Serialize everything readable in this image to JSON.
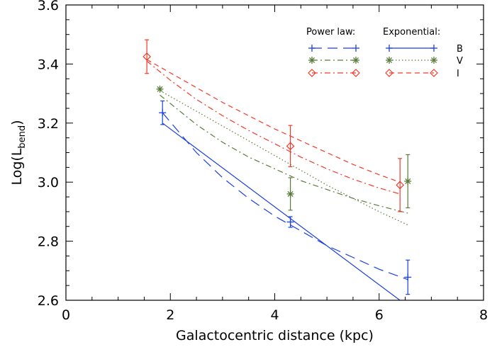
{
  "chart_data": {
    "type": "line",
    "title": "",
    "xlabel": "Galactocentric distance (kpc)",
    "ylabel_main": "Log(L",
    "ylabel_sub": "bend",
    "ylabel_close": ")",
    "xlim": [
      0,
      8
    ],
    "ylim": [
      2.6,
      3.6
    ],
    "x_ticks": [
      0,
      2,
      4,
      6,
      8
    ],
    "x_tick_labels": [
      "0",
      "2",
      "4",
      "6",
      "8"
    ],
    "y_ticks": [
      2.6,
      2.8,
      3.0,
      3.2,
      3.4,
      3.6
    ],
    "y_tick_labels": [
      "2.6",
      "2.8",
      "3.0",
      "3.2",
      "3.4",
      "3.6"
    ],
    "grid": false,
    "legend": {
      "placement": "top-right",
      "col_headers": [
        "Power law:",
        "Exponential:"
      ],
      "band_labels": [
        "B",
        "V",
        "I"
      ]
    },
    "colors": {
      "B": "#1a3fe0",
      "V": "#5a7a3a",
      "I": "#f03a2a"
    },
    "observations": [
      {
        "band": "B",
        "marker": "plus",
        "points": [
          {
            "x": 1.85,
            "y": 3.235,
            "err": 0.04
          },
          {
            "x": 4.3,
            "y": 2.865,
            "err": 0.018
          },
          {
            "x": 6.55,
            "y": 2.678,
            "err": 0.058
          }
        ]
      },
      {
        "band": "V",
        "marker": "asterisk",
        "points": [
          {
            "x": 1.8,
            "y": 3.315,
            "err": 0.0
          },
          {
            "x": 4.3,
            "y": 2.96,
            "err": 0.055
          },
          {
            "x": 6.55,
            "y": 3.003,
            "err": 0.09
          }
        ]
      },
      {
        "band": "I",
        "marker": "diamond",
        "points": [
          {
            "x": 1.55,
            "y": 3.425,
            "err": 0.057
          },
          {
            "x": 4.3,
            "y": 3.122,
            "err": 0.07
          },
          {
            "x": 6.4,
            "y": 2.99,
            "err": 0.09
          }
        ]
      }
    ],
    "fits": [
      {
        "band": "B",
        "model": "power law",
        "dash": "long-dash",
        "x": [
          1.85,
          2.5,
          3.0,
          3.5,
          4.0,
          4.5,
          5.0,
          5.5,
          6.0,
          6.55
        ],
        "y": [
          3.235,
          3.1,
          3.015,
          2.945,
          2.885,
          2.835,
          2.785,
          2.745,
          2.705,
          2.67
        ]
      },
      {
        "band": "B",
        "model": "exponential",
        "dash": "solid",
        "x": [
          1.85,
          6.55
        ],
        "y": [
          3.2,
          2.58
        ]
      },
      {
        "band": "V",
        "model": "power law",
        "dash": "dash-dot",
        "x": [
          1.8,
          2.5,
          3.0,
          3.5,
          4.0,
          4.5,
          5.0,
          5.5,
          6.0,
          6.55
        ],
        "y": [
          3.295,
          3.195,
          3.135,
          3.085,
          3.045,
          3.005,
          2.975,
          2.945,
          2.92,
          2.895
        ]
      },
      {
        "band": "V",
        "model": "exponential",
        "dash": "dotted",
        "x": [
          1.8,
          2.5,
          3.0,
          3.5,
          4.0,
          4.5,
          5.0,
          5.5,
          6.0,
          6.55
        ],
        "y": [
          3.31,
          3.24,
          3.19,
          3.14,
          3.09,
          3.04,
          2.99,
          2.945,
          2.9,
          2.855
        ]
      },
      {
        "band": "I",
        "model": "power law",
        "dash": "dash-dot",
        "x": [
          1.55,
          2.0,
          2.5,
          3.0,
          3.5,
          4.0,
          4.5,
          5.0,
          5.5,
          6.0,
          6.4
        ],
        "y": [
          3.41,
          3.345,
          3.28,
          3.225,
          3.175,
          3.13,
          3.085,
          3.045,
          3.01,
          2.98,
          2.96
        ]
      },
      {
        "band": "I",
        "model": "exponential",
        "dash": "dashed",
        "x": [
          1.55,
          2.0,
          2.5,
          3.0,
          3.5,
          4.0,
          4.5,
          5.0,
          5.5,
          6.0,
          6.4
        ],
        "y": [
          3.415,
          3.37,
          3.32,
          3.27,
          3.225,
          3.18,
          3.14,
          3.1,
          3.06,
          3.025,
          3.0
        ]
      }
    ]
  }
}
